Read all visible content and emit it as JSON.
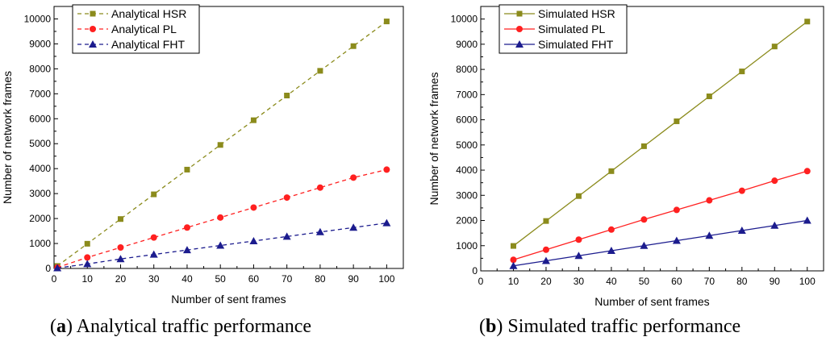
{
  "chart_data": [
    {
      "type": "line",
      "line_style": "dashed",
      "caption": {
        "letter": "a",
        "text": "Analytical traffic performance"
      },
      "xlabel": "Number of sent frames",
      "ylabel": "Number of network frames",
      "xlim": [
        0,
        105
      ],
      "ylim": [
        0,
        10500
      ],
      "xticks": [
        0,
        10,
        20,
        30,
        40,
        50,
        60,
        70,
        80,
        90,
        100
      ],
      "yticks": [
        0,
        1000,
        2000,
        3000,
        4000,
        5000,
        6000,
        7000,
        8000,
        9000,
        10000
      ],
      "legend_position": "top-left",
      "x": [
        1,
        10,
        20,
        30,
        40,
        50,
        60,
        70,
        80,
        90,
        100
      ],
      "series": [
        {
          "name": "Analytical HSR",
          "marker": "square",
          "color": "#8b8b1c",
          "values": [
            99,
            990,
            1980,
            2970,
            3960,
            4950,
            5940,
            6930,
            7920,
            8910,
            9900
          ]
        },
        {
          "name": "Analytical PL",
          "marker": "circle",
          "color": "#ff2020",
          "values": [
            40,
            440,
            840,
            1240,
            1640,
            2040,
            2440,
            2840,
            3240,
            3640,
            3960
          ]
        },
        {
          "name": "Analytical FHT",
          "marker": "triangle",
          "color": "#1c1c8e",
          "values": [
            18,
            180,
            380,
            560,
            740,
            920,
            1100,
            1280,
            1460,
            1640,
            1820
          ]
        }
      ]
    },
    {
      "type": "line",
      "line_style": "solid",
      "caption": {
        "letter": "b",
        "text": "Simulated traffic performance"
      },
      "xlabel": "Number of sent frames",
      "ylabel": "Number of network frames",
      "xlim": [
        0,
        105
      ],
      "ylim": [
        0,
        10500
      ],
      "xticks": [
        0,
        10,
        20,
        30,
        40,
        50,
        60,
        70,
        80,
        90,
        100
      ],
      "yticks": [
        0,
        1000,
        2000,
        3000,
        4000,
        5000,
        6000,
        7000,
        8000,
        9000,
        10000
      ],
      "legend_position": "top-left",
      "x": [
        10,
        20,
        30,
        40,
        50,
        60,
        70,
        80,
        90,
        100
      ],
      "series": [
        {
          "name": "Simulated HSR",
          "marker": "square",
          "color": "#8b8b1c",
          "values": [
            990,
            1980,
            2970,
            3960,
            4950,
            5940,
            6930,
            7920,
            8910,
            9900
          ]
        },
        {
          "name": "Simulated PL",
          "marker": "circle",
          "color": "#ff2020",
          "values": [
            440,
            840,
            1240,
            1640,
            2040,
            2420,
            2800,
            3180,
            3580,
            3960
          ]
        },
        {
          "name": "Simulated FHT",
          "marker": "triangle",
          "color": "#1c1c8e",
          "values": [
            200,
            400,
            600,
            800,
            1000,
            1200,
            1400,
            1600,
            1800,
            2000
          ]
        }
      ]
    }
  ]
}
